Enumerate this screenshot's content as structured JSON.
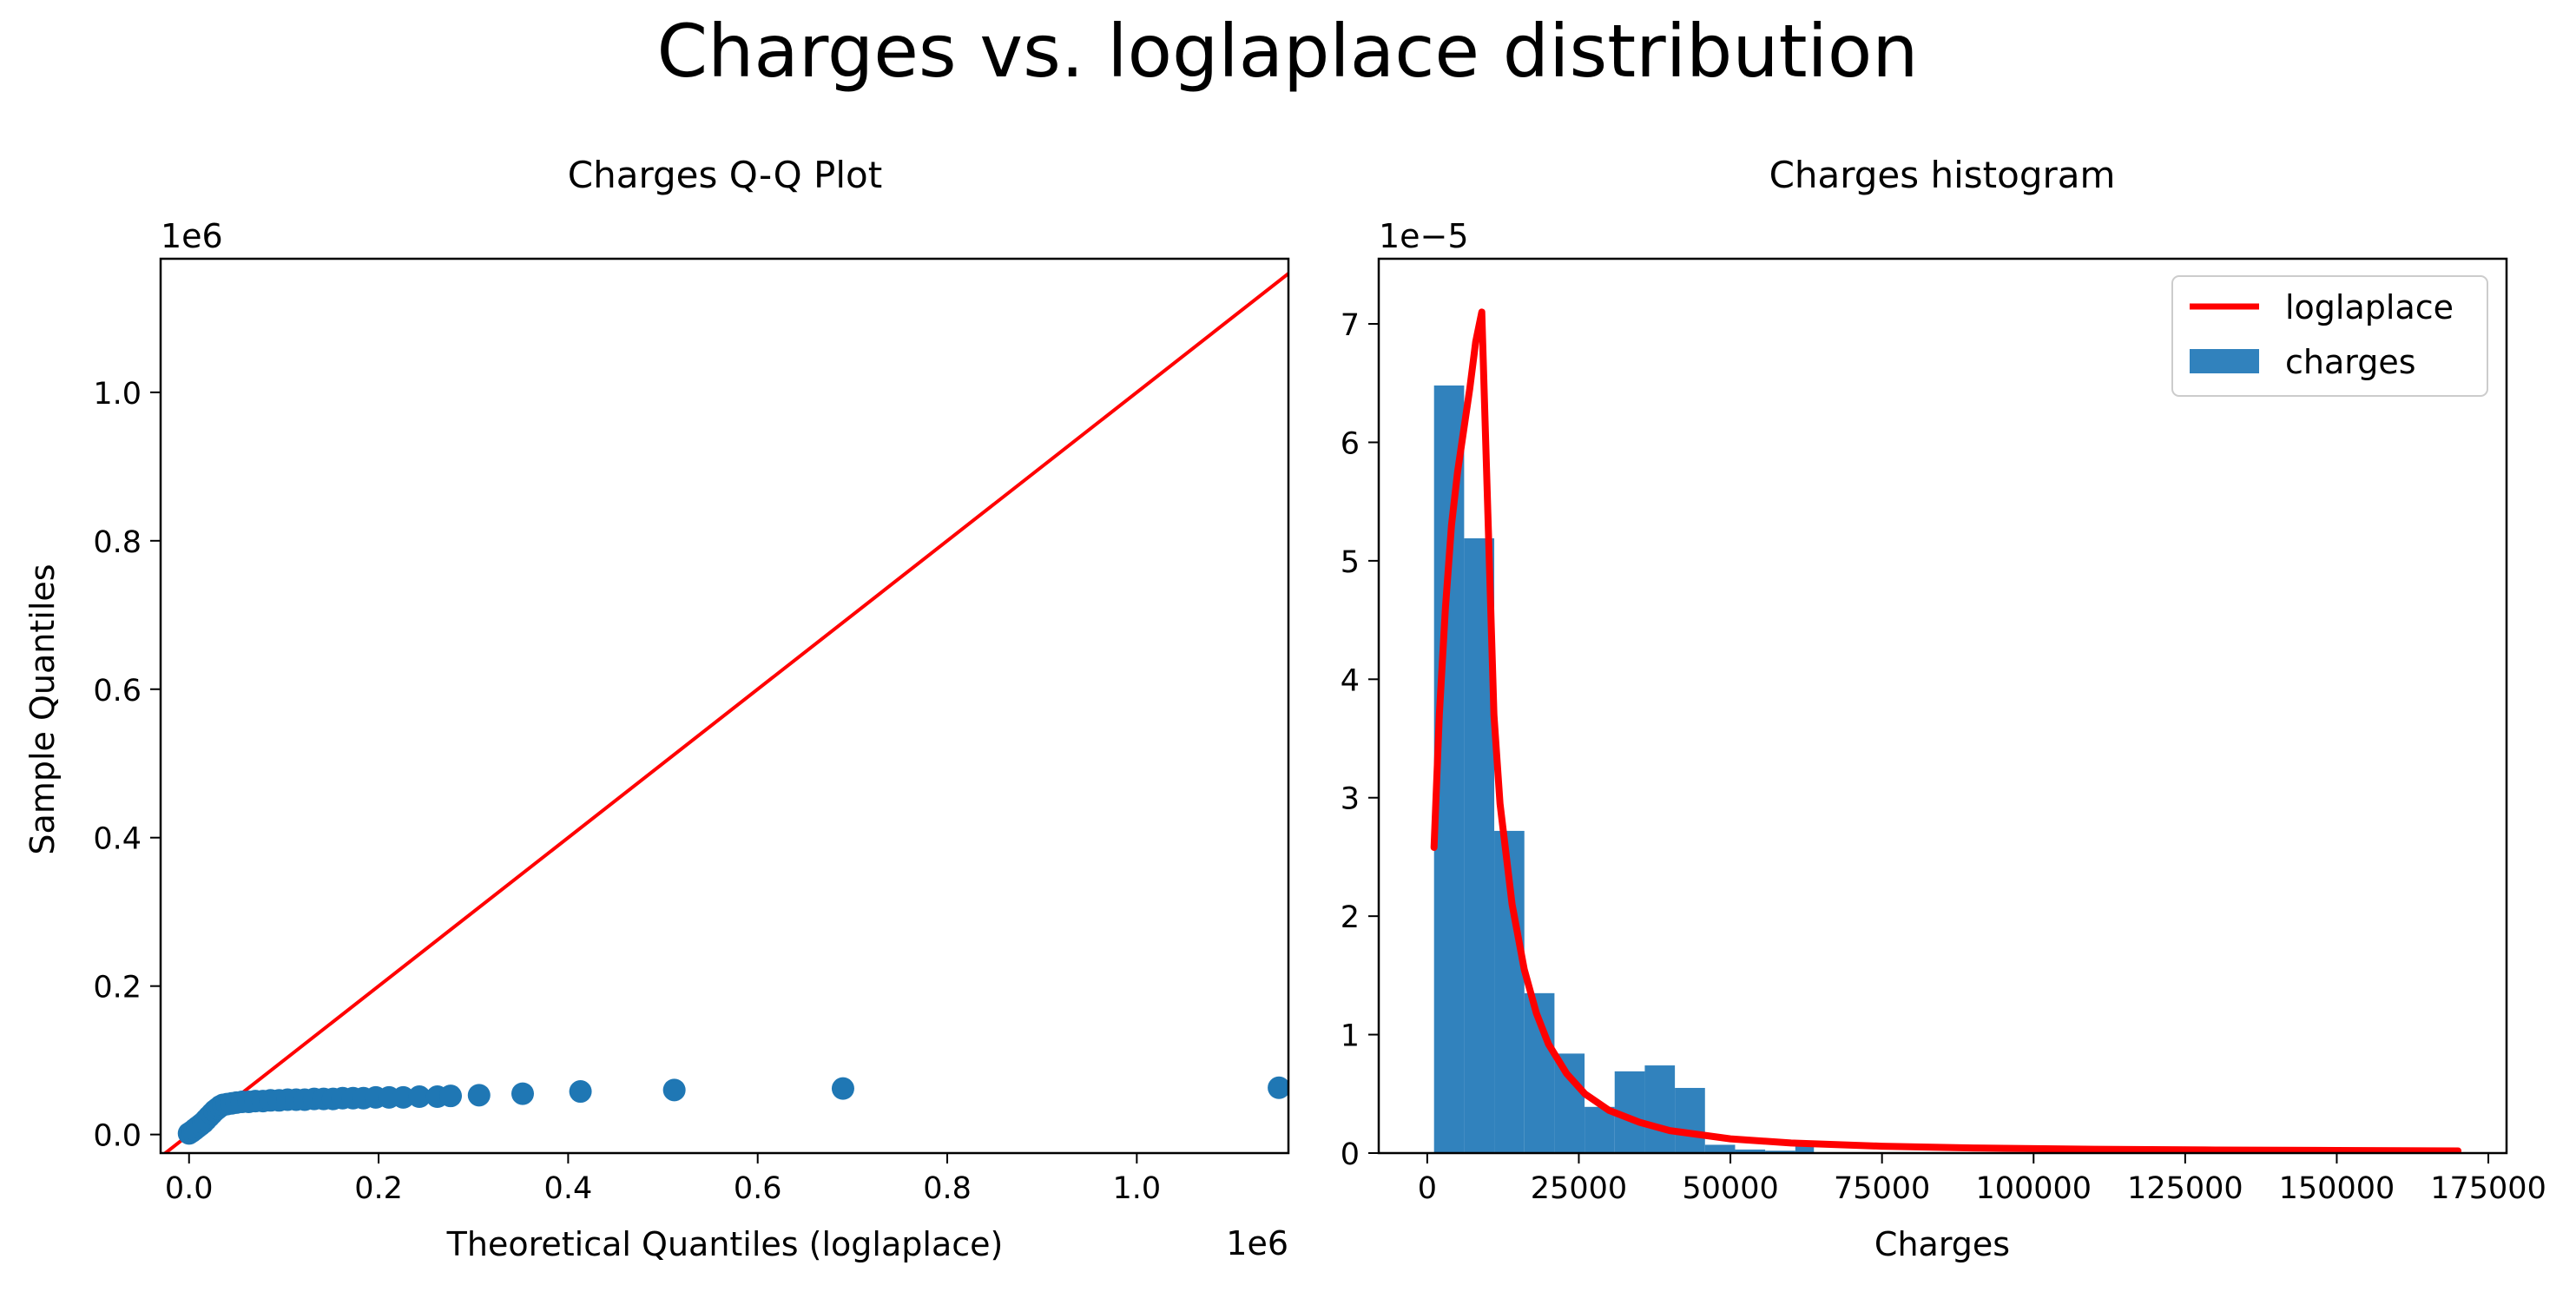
{
  "figure_title": "Charges vs. loglaplace distribution",
  "colors": {
    "points": "#1f77b4",
    "line": "#ff0000",
    "bars": "#3182bd",
    "axis": "#000000"
  },
  "chart_data": [
    {
      "type": "scatter",
      "title": "Charges Q-Q Plot",
      "xlabel": "Theoretical Quantiles (loglaplace)",
      "ylabel": "Sample Quantiles",
      "x_offset_label": "1e6",
      "y_offset_label": "1e6",
      "xlim": [
        -0.03,
        1.16
      ],
      "ylim": [
        -0.025,
        1.18
      ],
      "xticks": [
        0.0,
        0.2,
        0.4,
        0.6,
        0.8,
        1.0
      ],
      "xtick_labels": [
        "0.0",
        "0.2",
        "0.4",
        "0.6",
        "0.8",
        "1.0"
      ],
      "yticks": [
        0.0,
        0.2,
        0.4,
        0.6,
        0.8,
        1.0
      ],
      "ytick_labels": [
        "0.0",
        "0.2",
        "0.4",
        "0.6",
        "0.8",
        "1.0"
      ],
      "reference_line": {
        "label": "45-degree line",
        "from": [
          -0.03,
          -0.03
        ],
        "to": [
          1.18,
          1.18
        ]
      },
      "points": [
        [
          0.0,
          0.0015
        ],
        [
          0.003,
          0.004
        ],
        [
          0.006,
          0.007
        ],
        [
          0.009,
          0.01
        ],
        [
          0.012,
          0.013
        ],
        [
          0.015,
          0.016
        ],
        [
          0.018,
          0.02
        ],
        [
          0.021,
          0.024
        ],
        [
          0.024,
          0.028
        ],
        [
          0.027,
          0.032
        ],
        [
          0.03,
          0.035
        ],
        [
          0.033,
          0.038
        ],
        [
          0.036,
          0.04
        ],
        [
          0.04,
          0.041
        ],
        [
          0.045,
          0.042
        ],
        [
          0.05,
          0.043
        ],
        [
          0.056,
          0.044
        ],
        [
          0.063,
          0.044
        ],
        [
          0.07,
          0.045
        ],
        [
          0.078,
          0.045
        ],
        [
          0.086,
          0.046
        ],
        [
          0.095,
          0.046
        ],
        [
          0.104,
          0.047
        ],
        [
          0.113,
          0.047
        ],
        [
          0.122,
          0.047
        ],
        [
          0.132,
          0.048
        ],
        [
          0.142,
          0.048
        ],
        [
          0.152,
          0.048
        ],
        [
          0.162,
          0.049
        ],
        [
          0.173,
          0.049
        ],
        [
          0.184,
          0.049
        ],
        [
          0.197,
          0.05
        ],
        [
          0.211,
          0.05
        ],
        [
          0.226,
          0.05
        ],
        [
          0.243,
          0.051
        ],
        [
          0.262,
          0.051
        ],
        [
          0.276,
          0.052
        ],
        [
          0.306,
          0.053
        ],
        [
          0.352,
          0.055
        ],
        [
          0.413,
          0.058
        ],
        [
          0.512,
          0.06
        ],
        [
          0.69,
          0.062
        ],
        [
          1.15,
          0.063
        ]
      ]
    },
    {
      "type": "bar",
      "title": "Charges histogram",
      "xlabel": "Charges",
      "ylabel": "",
      "y_offset_label": "1e−5",
      "xlim": [
        -8000,
        178000
      ],
      "ylim": [
        0,
        7.55
      ],
      "xticks": [
        0,
        25000,
        50000,
        75000,
        100000,
        125000,
        150000,
        175000
      ],
      "xtick_labels": [
        "0",
        "25000",
        "50000",
        "75000",
        "100000",
        "125000",
        "150000",
        "175000"
      ],
      "yticks": [
        0,
        1,
        2,
        3,
        4,
        5,
        6,
        7
      ],
      "ytick_labels": [
        "0",
        "1",
        "2",
        "3",
        "4",
        "5",
        "6",
        "7"
      ],
      "bin_edges": [
        1122,
        6087,
        11052,
        16017,
        20982,
        25947,
        30912,
        35877,
        40842,
        45807,
        50772,
        55737,
        60702,
        63770
      ],
      "values": [
        6.48,
        5.19,
        2.72,
        1.35,
        0.84,
        0.39,
        0.69,
        0.74,
        0.55,
        0.07,
        0.03,
        0.02,
        0.09
      ],
      "legend": {
        "position": "top-right",
        "entries": [
          "loglaplace",
          "charges"
        ]
      },
      "series_line": {
        "name": "loglaplace",
        "x": [
          1122,
          2000,
          3000,
          4000,
          5000,
          6000,
          7000,
          8000,
          9000,
          10000,
          11000,
          12000,
          14000,
          16000,
          18000,
          20000,
          23000,
          26000,
          30000,
          35000,
          40000,
          50000,
          60000,
          75000,
          90000,
          110000,
          130000,
          150000,
          170000
        ],
        "y": [
          2.58,
          3.7,
          4.6,
          5.3,
          5.75,
          6.1,
          6.45,
          6.85,
          7.1,
          5.4,
          3.7,
          2.95,
          2.1,
          1.55,
          1.18,
          0.92,
          0.67,
          0.5,
          0.36,
          0.26,
          0.19,
          0.12,
          0.085,
          0.058,
          0.043,
          0.032,
          0.026,
          0.022,
          0.018
        ]
      }
    }
  ]
}
